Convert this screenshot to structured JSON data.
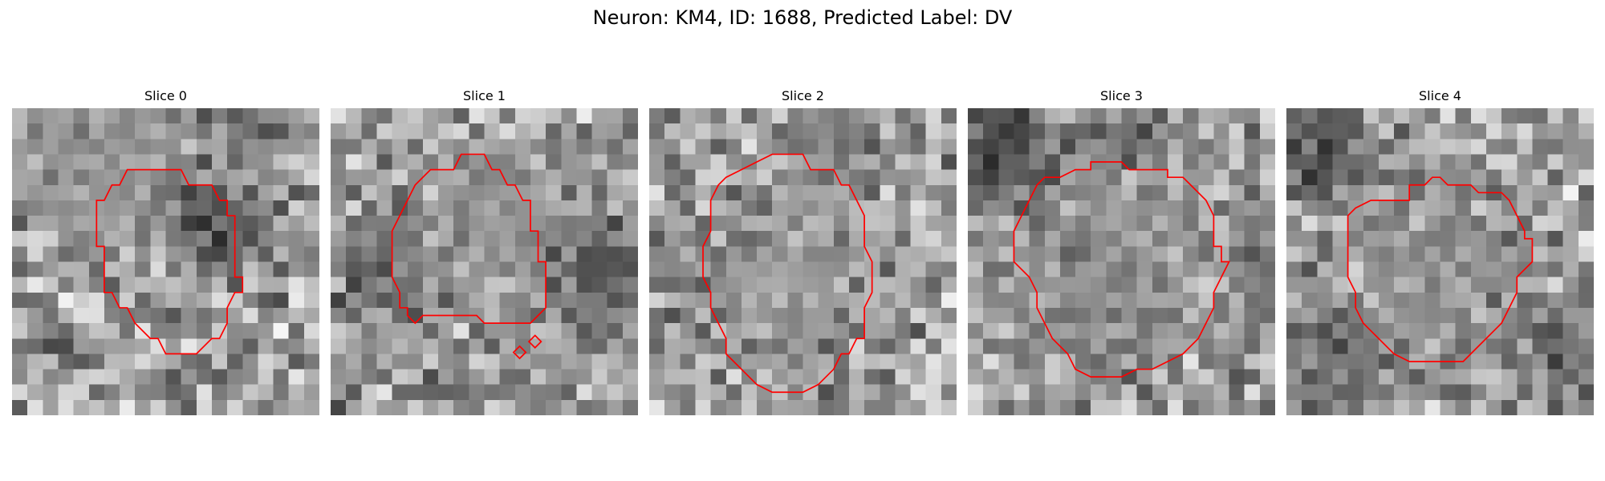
{
  "figure": {
    "title": "Neuron: KM4, ID: 1688, Predicted Label: DV"
  },
  "panels": [
    {
      "title": "Slice 0",
      "blobs": [
        [
          3.5,
          3.5,
          5,
          4,
          0.55,
          0.85
        ],
        [
          13,
          6.5,
          3.5,
          3,
          0.15,
          0.6
        ],
        [
          14.5,
          0.5,
          3,
          2.5,
          0.25,
          0.55
        ]
      ],
      "contours": [
        [
          [
            8,
            4
          ],
          [
            11,
            4
          ],
          [
            11.5,
            5
          ],
          [
            13,
            5
          ],
          [
            13.5,
            6
          ],
          [
            14,
            6
          ],
          [
            14,
            7
          ],
          [
            14.5,
            7
          ],
          [
            14.5,
            11
          ],
          [
            15,
            11
          ],
          [
            15,
            12
          ],
          [
            14.5,
            12
          ],
          [
            14,
            13
          ],
          [
            14,
            14
          ],
          [
            13.5,
            15
          ],
          [
            13,
            15
          ],
          [
            12,
            16
          ],
          [
            10,
            16
          ],
          [
            9.5,
            15
          ],
          [
            9,
            15
          ],
          [
            8,
            14
          ],
          [
            7.5,
            13
          ],
          [
            7,
            13
          ],
          [
            6.5,
            12
          ],
          [
            6,
            12
          ],
          [
            6,
            9
          ],
          [
            5.5,
            9
          ],
          [
            5.5,
            6
          ],
          [
            6,
            6
          ],
          [
            6.5,
            5
          ],
          [
            7,
            5
          ],
          [
            7.5,
            4
          ]
        ]
      ]
    },
    {
      "title": "Slice 1",
      "blobs": [
        [
          10,
          6.5,
          5,
          4.5,
          0.55,
          0.8
        ],
        [
          17.5,
          11,
          4,
          3.5,
          0.2,
          0.7
        ],
        [
          2.5,
          10.5,
          3,
          4,
          0.3,
          0.55
        ]
      ],
      "contours": [
        [
          [
            7,
            4
          ],
          [
            8,
            4
          ],
          [
            8.5,
            3
          ],
          [
            10,
            3
          ],
          [
            10.5,
            4
          ],
          [
            11,
            4
          ],
          [
            11.5,
            5
          ],
          [
            12,
            5
          ],
          [
            12.5,
            6
          ],
          [
            13,
            6
          ],
          [
            13,
            8
          ],
          [
            13.5,
            8
          ],
          [
            13.5,
            10
          ],
          [
            14,
            10
          ],
          [
            14,
            13
          ],
          [
            13,
            14
          ],
          [
            11,
            14
          ],
          [
            10,
            14
          ],
          [
            9.5,
            13.5
          ],
          [
            6,
            13.5
          ],
          [
            5.5,
            14
          ],
          [
            5,
            13.5
          ],
          [
            5,
            13
          ],
          [
            4.5,
            13
          ],
          [
            4.5,
            12
          ],
          [
            4,
            11
          ],
          [
            4,
            8
          ],
          [
            4.5,
            7
          ],
          [
            5,
            6
          ],
          [
            5.5,
            5
          ],
          [
            6.5,
            4
          ]
        ],
        [
          [
            12.3,
            15.5
          ],
          [
            12.7,
            15.9
          ],
          [
            12.3,
            16.3
          ],
          [
            11.9,
            15.9
          ]
        ],
        [
          [
            13.3,
            14.8
          ],
          [
            13.7,
            15.2
          ],
          [
            13.3,
            15.6
          ],
          [
            12.9,
            15.2
          ]
        ]
      ]
    },
    {
      "title": "Slice 2",
      "blobs": [
        [
          9.5,
          9.5,
          6.5,
          6.5,
          0.55,
          0.7
        ],
        [
          12,
          1.5,
          2.5,
          2.5,
          0.25,
          0.55
        ]
      ],
      "contours": [
        [
          [
            8,
            3
          ],
          [
            10,
            3
          ],
          [
            10.5,
            4
          ],
          [
            12,
            4
          ],
          [
            12.5,
            5
          ],
          [
            13,
            5
          ],
          [
            13.5,
            6
          ],
          [
            14,
            7
          ],
          [
            14,
            9
          ],
          [
            14.5,
            10
          ],
          [
            14.5,
            12
          ],
          [
            14,
            13
          ],
          [
            14,
            15
          ],
          [
            13.5,
            15
          ],
          [
            13,
            16
          ],
          [
            12.5,
            16
          ],
          [
            12,
            17
          ],
          [
            11,
            18
          ],
          [
            10,
            18.5
          ],
          [
            8,
            18.5
          ],
          [
            7,
            18
          ],
          [
            6,
            17
          ],
          [
            5.5,
            16.5
          ],
          [
            5,
            16
          ],
          [
            5,
            15
          ],
          [
            4.5,
            14
          ],
          [
            4,
            13
          ],
          [
            4,
            12
          ],
          [
            3.5,
            11
          ],
          [
            3.5,
            9
          ],
          [
            4,
            8
          ],
          [
            4,
            6
          ],
          [
            4.5,
            5
          ],
          [
            5,
            4.5
          ],
          [
            6,
            4
          ],
          [
            7,
            3.5
          ]
        ]
      ]
    },
    {
      "title": "Slice 3",
      "blobs": [
        [
          9.5,
          9.5,
          6.5,
          6.5,
          0.55,
          0.75
        ],
        [
          2,
          2,
          3,
          3,
          0.1,
          0.7
        ],
        [
          10,
          1,
          4,
          2,
          0.3,
          0.5
        ],
        [
          18.5,
          9,
          2,
          6,
          0.3,
          0.4
        ]
      ],
      "contours": [
        [
          [
            7,
            4
          ],
          [
            8,
            4
          ],
          [
            8,
            3.5
          ],
          [
            10,
            3.5
          ],
          [
            10.5,
            4
          ],
          [
            13,
            4
          ],
          [
            13,
            4.5
          ],
          [
            14,
            4.5
          ],
          [
            14.5,
            5
          ],
          [
            15,
            5.5
          ],
          [
            15.5,
            6
          ],
          [
            16,
            7
          ],
          [
            16,
            9
          ],
          [
            16.5,
            9
          ],
          [
            16.5,
            10
          ],
          [
            17,
            10
          ],
          [
            16.5,
            11
          ],
          [
            16,
            12
          ],
          [
            16,
            13
          ],
          [
            15.5,
            14
          ],
          [
            15,
            15
          ],
          [
            14,
            16
          ],
          [
            13,
            16.5
          ],
          [
            12,
            17
          ],
          [
            11,
            17
          ],
          [
            10,
            17.5
          ],
          [
            8,
            17.5
          ],
          [
            7,
            17
          ],
          [
            6.5,
            16
          ],
          [
            6,
            15.5
          ],
          [
            5.5,
            15
          ],
          [
            5,
            14
          ],
          [
            4.5,
            13
          ],
          [
            4.5,
            12
          ],
          [
            4,
            11
          ],
          [
            3,
            10
          ],
          [
            3,
            8
          ],
          [
            3.5,
            7
          ],
          [
            4,
            6
          ],
          [
            4.5,
            5
          ],
          [
            5,
            4.5
          ],
          [
            6,
            4.5
          ]
        ]
      ]
    },
    {
      "title": "Slice 4",
      "blobs": [
        [
          9.5,
          9.5,
          6,
          6,
          0.55,
          0.75
        ],
        [
          2,
          2,
          3,
          3,
          0.15,
          0.65
        ],
        [
          3,
          17,
          4,
          4,
          0.25,
          0.6
        ],
        [
          18,
          17,
          3.5,
          3.5,
          0.25,
          0.55
        ]
      ],
      "contours": [
        [
          [
            7,
            6
          ],
          [
            8,
            6
          ],
          [
            8,
            5
          ],
          [
            9,
            5
          ],
          [
            9.5,
            4.5
          ],
          [
            10,
            4.5
          ],
          [
            10.5,
            5
          ],
          [
            12,
            5
          ],
          [
            12.5,
            5.5
          ],
          [
            14,
            5.5
          ],
          [
            14.5,
            6
          ],
          [
            15,
            7
          ],
          [
            15.5,
            8
          ],
          [
            15.5,
            8.5
          ],
          [
            16,
            8.5
          ],
          [
            16,
            10
          ],
          [
            15.5,
            10.5
          ],
          [
            15,
            11
          ],
          [
            15,
            12
          ],
          [
            14.5,
            13
          ],
          [
            14,
            14
          ],
          [
            13.5,
            14.5
          ],
          [
            13,
            15
          ],
          [
            12,
            16
          ],
          [
            11.5,
            16.5
          ],
          [
            8,
            16.5
          ],
          [
            7,
            16
          ],
          [
            6,
            15
          ],
          [
            5.5,
            14.5
          ],
          [
            5,
            14
          ],
          [
            4.5,
            13
          ],
          [
            4.5,
            12
          ],
          [
            4,
            11
          ],
          [
            4,
            7
          ],
          [
            4.5,
            6.5
          ],
          [
            5.5,
            6
          ]
        ]
      ]
    }
  ]
}
